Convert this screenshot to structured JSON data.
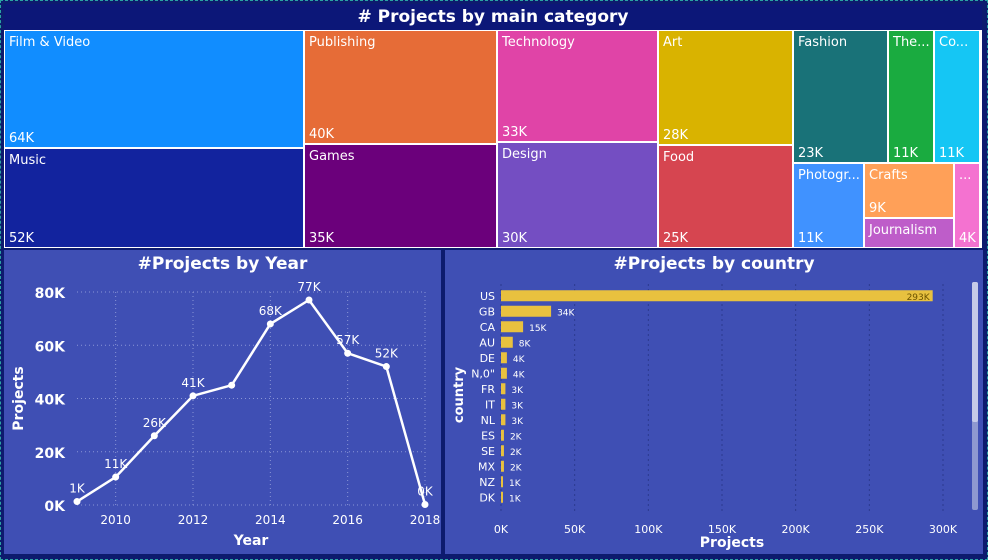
{
  "treemap": {
    "title": "# Projects by main category",
    "tiles": [
      {
        "label": "Film & Video",
        "value": "64K",
        "color": "#118dff",
        "x": 0,
        "y": 0,
        "w": 300,
        "h": 118
      },
      {
        "label": "Music",
        "value": "52K",
        "color": "#12239e",
        "x": 0,
        "y": 118,
        "w": 300,
        "h": 100
      },
      {
        "label": "Publishing",
        "value": "40K",
        "color": "#e66c37",
        "x": 300,
        "y": 0,
        "w": 193,
        "h": 114
      },
      {
        "label": "Games",
        "value": "35K",
        "color": "#6b007b",
        "x": 300,
        "y": 114,
        "w": 193,
        "h": 104
      },
      {
        "label": "Technology",
        "value": "33K",
        "color": "#e044a7",
        "x": 493,
        "y": 0,
        "w": 161,
        "h": 112
      },
      {
        "label": "Design",
        "value": "30K",
        "color": "#744ec2",
        "x": 493,
        "y": 112,
        "w": 161,
        "h": 106
      },
      {
        "label": "Art",
        "value": "28K",
        "color": "#d9b300",
        "x": 654,
        "y": 0,
        "w": 135,
        "h": 115
      },
      {
        "label": "Food",
        "value": "25K",
        "color": "#d64550",
        "x": 654,
        "y": 115,
        "w": 135,
        "h": 103
      },
      {
        "label": "Fashion",
        "value": "23K",
        "color": "#197278",
        "x": 789,
        "y": 0,
        "w": 95,
        "h": 133
      },
      {
        "label": "The...",
        "value": "11K",
        "color": "#1aab40",
        "x": 884,
        "y": 0,
        "w": 46,
        "h": 133
      },
      {
        "label": "Co...",
        "value": "11K",
        "color": "#15c6f4",
        "x": 930,
        "y": 0,
        "w": 46,
        "h": 133
      },
      {
        "label": "Photogr...",
        "value": "11K",
        "color": "#4092ff",
        "x": 789,
        "y": 133,
        "w": 71,
        "h": 85
      },
      {
        "label": "Crafts",
        "value": "9K",
        "color": "#ffa058",
        "x": 860,
        "y": 133,
        "w": 90,
        "h": 55
      },
      {
        "label": "Journalism",
        "value": "",
        "color": "#be5dc9",
        "x": 860,
        "y": 188,
        "w": 90,
        "h": 30
      },
      {
        "label": "...",
        "value": "4K",
        "color": "#f472d0",
        "x": 950,
        "y": 133,
        "w": 26,
        "h": 85
      }
    ]
  },
  "chart_data": [
    {
      "type": "line",
      "title": "#Projects by Year",
      "xlabel": "Year",
      "ylabel": "Projects",
      "x": [
        2009,
        2010,
        2011,
        2012,
        2013,
        2014,
        2015,
        2016,
        2017,
        2018
      ],
      "values": [
        1300,
        10500,
        26000,
        41000,
        45000,
        68000,
        77000,
        57000,
        52000,
        200
      ],
      "labels": [
        "1K",
        "11K",
        "26K",
        "41K",
        "",
        "68K",
        "77K",
        "57K",
        "52K",
        "0K"
      ],
      "xticks": [
        "2010",
        "2012",
        "2014",
        "2016",
        "2018"
      ],
      "yticks": [
        "0K",
        "20K",
        "40K",
        "60K",
        "80K"
      ],
      "ylim": [
        0,
        80000
      ],
      "xlim": [
        2009,
        2018
      ],
      "grid": true
    },
    {
      "type": "bar",
      "orientation": "horizontal",
      "title": "#Projects by country",
      "xlabel": "Projects",
      "ylabel": "country",
      "categories": [
        "US",
        "GB",
        "CA",
        "AU",
        "DE",
        "N,0\"",
        "FR",
        "IT",
        "NL",
        "ES",
        "SE",
        "MX",
        "NZ",
        "DK"
      ],
      "values": [
        293000,
        34000,
        15000,
        8000,
        4000,
        4000,
        3000,
        3000,
        3000,
        2000,
        2000,
        2000,
        1000,
        1000
      ],
      "labels": [
        "293K",
        "34K",
        "15K",
        "8K",
        "4K",
        "4K",
        "3K",
        "3K",
        "3K",
        "2K",
        "2K",
        "2K",
        "1K",
        "1K"
      ],
      "xticks": [
        "0K",
        "50K",
        "100K",
        "150K",
        "200K",
        "250K",
        "300K"
      ],
      "xlim": [
        0,
        300000
      ],
      "bar_color": "#e8c13f",
      "grid": true
    }
  ]
}
